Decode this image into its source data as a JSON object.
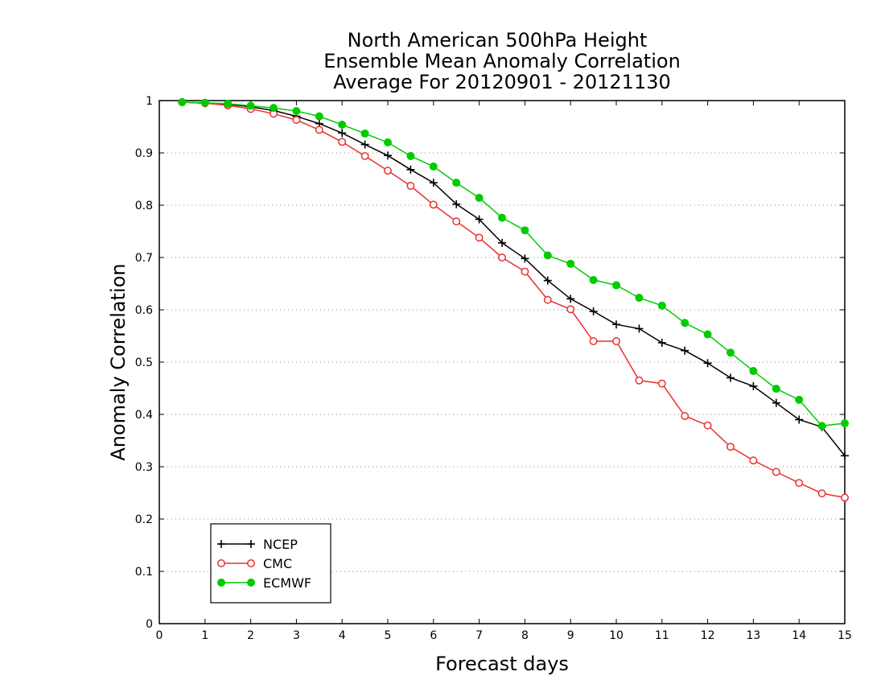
{
  "chart_data": {
    "type": "line",
    "title": [
      "North American 500hPa Height",
      "Ensemble Mean Anomaly Correlation",
      "Average For 20120901 - 20121130"
    ],
    "xlabel": "Forecast days",
    "ylabel": "Anomaly Correlation",
    "xlim": [
      0,
      15
    ],
    "ylim": [
      0,
      1
    ],
    "xticks": [
      "0",
      "1",
      "2",
      "3",
      "4",
      "5",
      "6",
      "7",
      "8",
      "9",
      "10",
      "11",
      "12",
      "13",
      "14",
      "15"
    ],
    "yticks": [
      "0",
      "0.1",
      "0.2",
      "0.3",
      "0.4",
      "0.5",
      "0.6",
      "0.7",
      "0.8",
      "0.9",
      "1"
    ],
    "grid": "horizontal-dotted",
    "legend_position": "bottom-left",
    "x": [
      0.5,
      1,
      1.5,
      2,
      2.5,
      3,
      3.5,
      4,
      4.5,
      5,
      5.5,
      6,
      6.5,
      7,
      7.5,
      8,
      8.5,
      9,
      9.5,
      10,
      10.5,
      11,
      11.5,
      12,
      12.5,
      13,
      13.5,
      14,
      14.5,
      15
    ],
    "series": [
      {
        "name": "NCEP",
        "color": "#000000",
        "marker": "plus",
        "values": [
          0.997,
          0.995,
          0.993,
          0.988,
          0.981,
          0.97,
          0.956,
          0.938,
          0.916,
          0.895,
          0.868,
          0.843,
          0.802,
          0.773,
          0.728,
          0.698,
          0.656,
          0.621,
          0.597,
          0.572,
          0.564,
          0.537,
          0.522,
          0.498,
          0.47,
          0.454,
          0.422,
          0.39,
          0.376,
          0.321
        ]
      },
      {
        "name": "CMC",
        "color": "#e83030",
        "marker": "open-circle",
        "values": [
          0.997,
          0.995,
          0.991,
          0.984,
          0.975,
          0.963,
          0.944,
          0.921,
          0.894,
          0.866,
          0.837,
          0.801,
          0.769,
          0.738,
          0.7,
          0.673,
          0.619,
          0.601,
          0.54,
          0.54,
          0.465,
          0.459,
          0.397,
          0.379,
          0.338,
          0.312,
          0.29,
          0.269,
          0.249,
          0.241
        ]
      },
      {
        "name": "ECMWF",
        "color": "#00cc00",
        "marker": "filled-circle",
        "values": [
          0.997,
          0.996,
          0.994,
          0.99,
          0.986,
          0.98,
          0.97,
          0.954,
          0.937,
          0.92,
          0.894,
          0.874,
          0.843,
          0.814,
          0.776,
          0.752,
          0.704,
          0.688,
          0.657,
          0.647,
          0.623,
          0.608,
          0.575,
          0.553,
          0.518,
          0.483,
          0.449,
          0.428,
          0.378,
          0.383
        ]
      }
    ]
  }
}
